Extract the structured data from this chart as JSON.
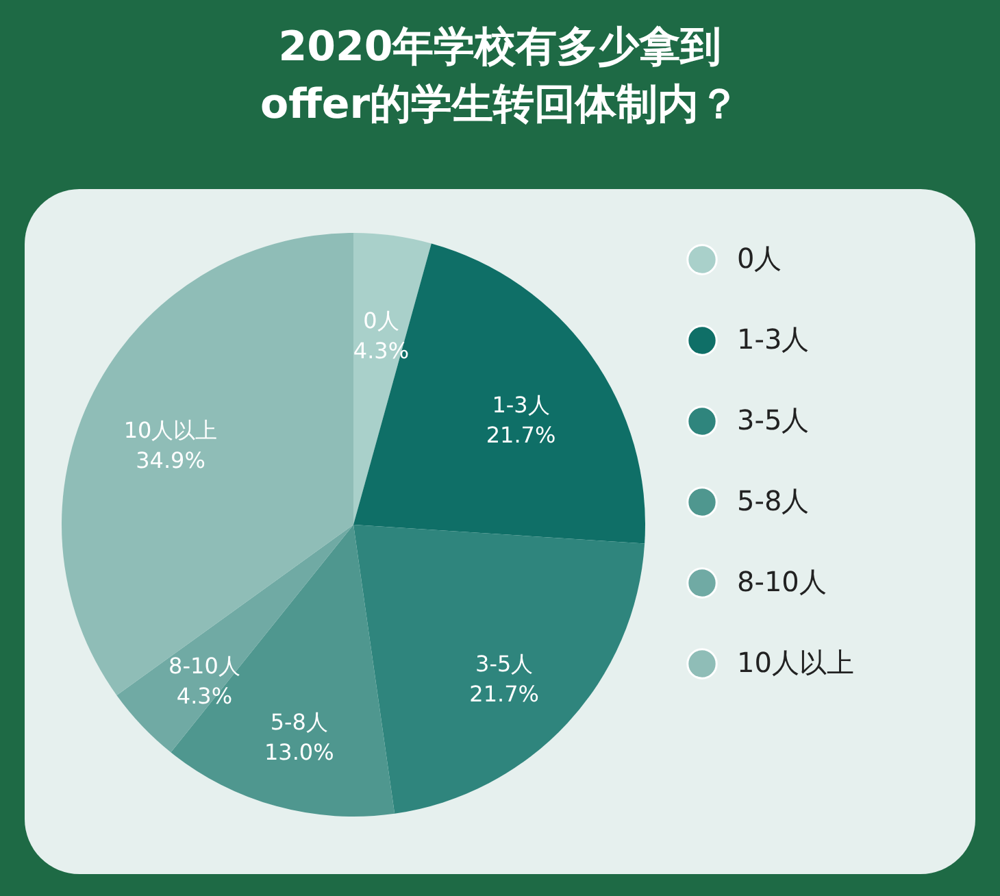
{
  "chart_data": {
    "type": "pie",
    "title": "2020年学校有多少拿到offer的学生转回体制内？",
    "categories": [
      "0人",
      "1-3人",
      "3-5人",
      "5-8人",
      "8-10人",
      "10人以上"
    ],
    "values": [
      4.3,
      21.7,
      21.7,
      13.0,
      4.3,
      34.9
    ],
    "value_labels": [
      "4.3%",
      "21.7%",
      "21.7%",
      "13.0%",
      "4.3%",
      "34.9%"
    ],
    "colors": [
      "#a9d0ca",
      "#0f6f67",
      "#2f857d",
      "#4f978f",
      "#70aaa4",
      "#8fbdb7"
    ],
    "legend": "right"
  }
}
